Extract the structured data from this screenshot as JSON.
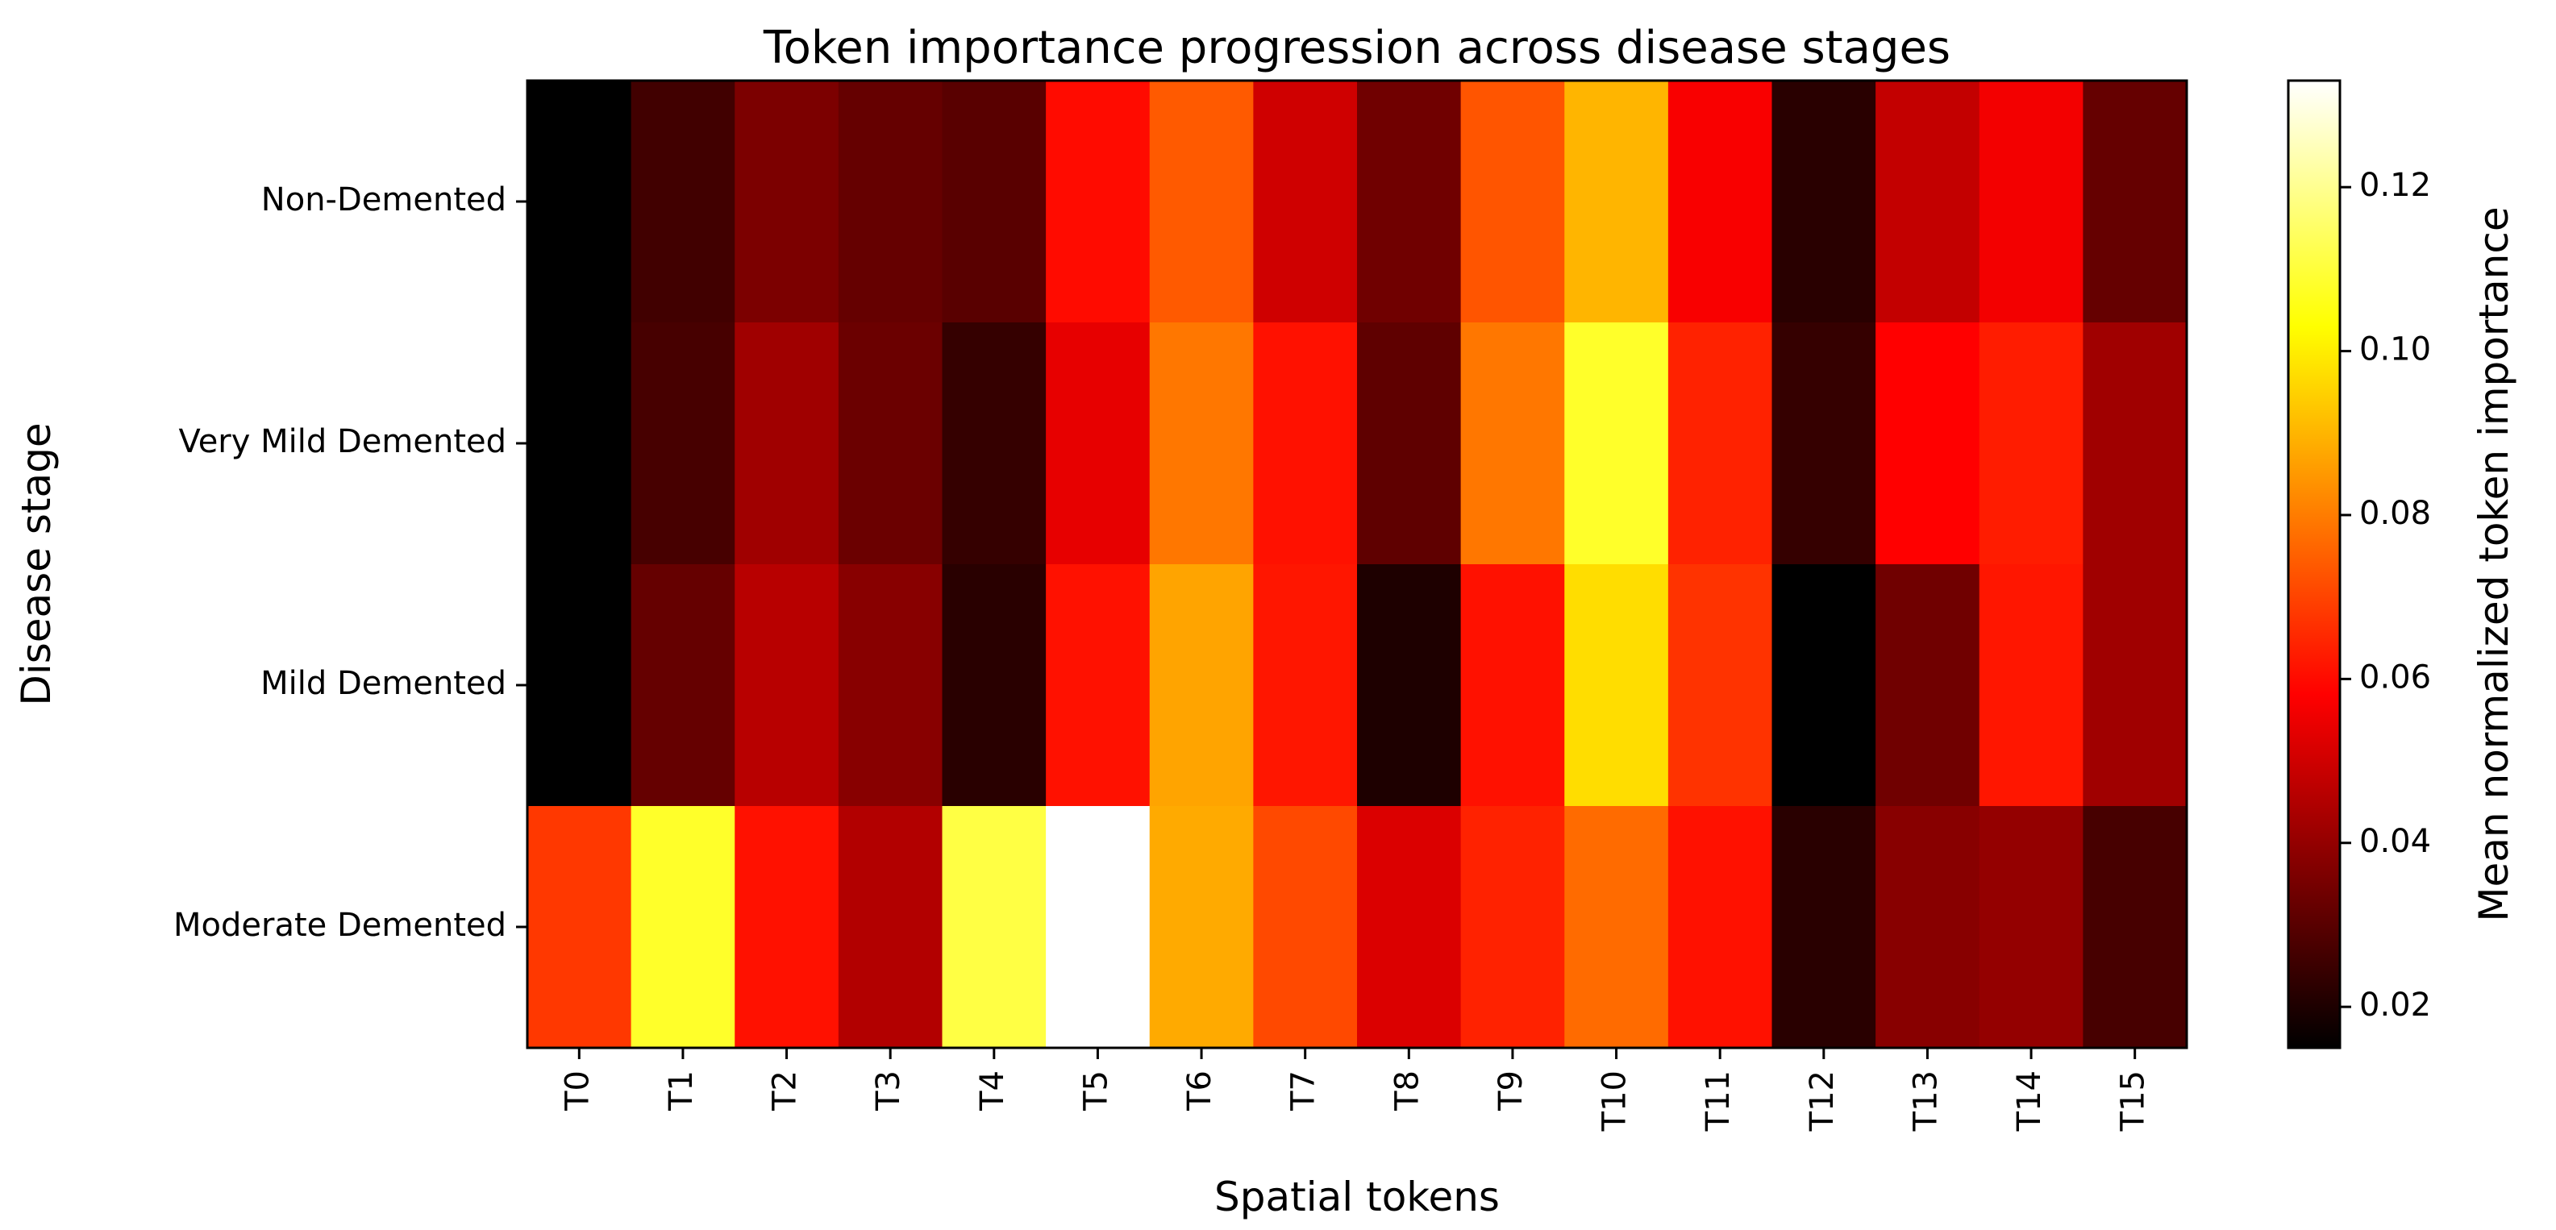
{
  "chart_data": {
    "type": "heatmap",
    "title": "Token importance progression across disease stages",
    "xlabel": "Spatial tokens",
    "ylabel": "Disease stage",
    "x_categories": [
      "T0",
      "T1",
      "T2",
      "T3",
      "T4",
      "T5",
      "T6",
      "T7",
      "T8",
      "T9",
      "T10",
      "T11",
      "T12",
      "T13",
      "T14",
      "T15"
    ],
    "y_categories": [
      "Non-Demented",
      "Very Mild Demented",
      "Mild Demented",
      "Moderate Demented"
    ],
    "values": [
      [
        0.014,
        0.026,
        0.036,
        0.032,
        0.03,
        0.06,
        0.074,
        0.05,
        0.034,
        0.073,
        0.09,
        0.057,
        0.022,
        0.048,
        0.056,
        0.032
      ],
      [
        0.014,
        0.027,
        0.042,
        0.033,
        0.024,
        0.054,
        0.079,
        0.061,
        0.031,
        0.079,
        0.108,
        0.064,
        0.024,
        0.058,
        0.063,
        0.042
      ],
      [
        0.014,
        0.032,
        0.046,
        0.038,
        0.022,
        0.061,
        0.087,
        0.062,
        0.02,
        0.061,
        0.097,
        0.067,
        0.014,
        0.034,
        0.062,
        0.042
      ],
      [
        0.068,
        0.108,
        0.061,
        0.045,
        0.111,
        0.133,
        0.088,
        0.071,
        0.052,
        0.064,
        0.077,
        0.061,
        0.022,
        0.038,
        0.04,
        0.027
      ]
    ],
    "colormap": "hot",
    "colorbar": {
      "label": "Mean normalized token importance",
      "range": [
        0.015,
        0.133
      ],
      "ticks": [
        0.02,
        0.04,
        0.06,
        0.08,
        0.1,
        0.12
      ],
      "tick_labels": [
        "0.02",
        "0.04",
        "0.06",
        "0.08",
        "0.10",
        "0.12"
      ]
    },
    "grid": false
  }
}
